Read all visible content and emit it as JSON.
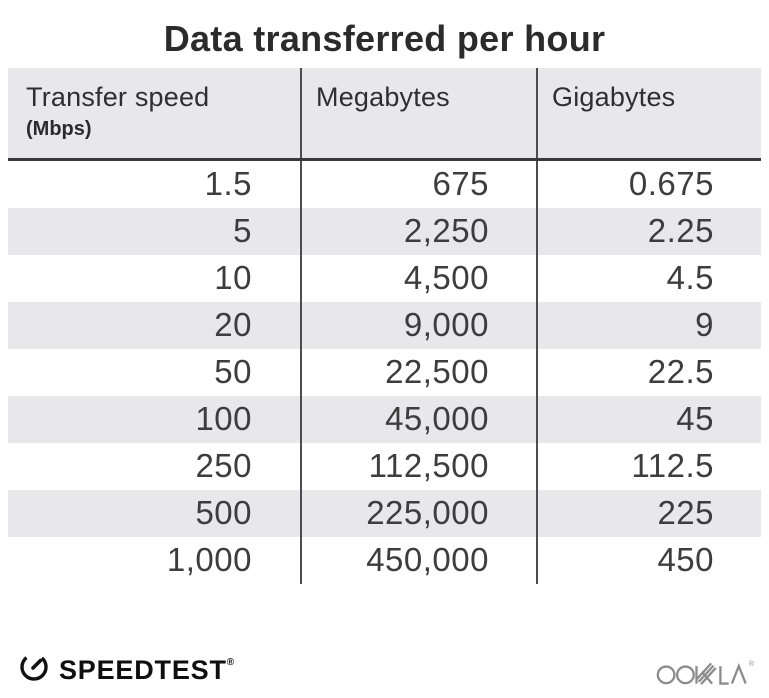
{
  "title": "Data transferred per hour",
  "chart_data": {
    "type": "table",
    "title": "Data transferred per hour",
    "columns": [
      "Transfer speed (Mbps)",
      "Megabytes",
      "Gigabytes"
    ],
    "rows": [
      [
        1.5,
        675,
        0.675
      ],
      [
        5,
        2250,
        2.25
      ],
      [
        10,
        4500,
        4.5
      ],
      [
        20,
        9000,
        9
      ],
      [
        50,
        22500,
        22.5
      ],
      [
        100,
        45000,
        45
      ],
      [
        250,
        112500,
        112.5
      ],
      [
        500,
        225000,
        225
      ],
      [
        1000,
        450000,
        450
      ]
    ]
  },
  "table": {
    "columns": [
      {
        "label": "Transfer speed",
        "sublabel": "(Mbps)"
      },
      {
        "label": "Megabytes",
        "sublabel": ""
      },
      {
        "label": "Gigabytes",
        "sublabel": ""
      }
    ],
    "display_rows": [
      [
        "1.5",
        "675",
        "0.675"
      ],
      [
        "5",
        "2,250",
        "2.25"
      ],
      [
        "10",
        "4,500",
        "4.5"
      ],
      [
        "20",
        "9,000",
        "9"
      ],
      [
        "50",
        "22,500",
        "22.5"
      ],
      [
        "100",
        "45,000",
        "45"
      ],
      [
        "250",
        "112,500",
        "112.5"
      ],
      [
        "500",
        "225,000",
        "225"
      ],
      [
        "1,000",
        "450,000",
        "450"
      ]
    ]
  },
  "footer": {
    "speedtest_label": "SPEEDTEST",
    "speedtest_reg_mark": "®",
    "ookla_label": "OOKLA",
    "ookla_reg_mark": "®"
  },
  "colors": {
    "background": "#ffffff",
    "title_text": "#2b2b2b",
    "header_bg": "#e8e8ea",
    "stripe_bg": "#e8e8ea",
    "column_divider": "#4d4d4d",
    "header_rule": "#3a3a3a",
    "data_text": "#3d3d3d",
    "logo_black": "#111111",
    "ookla_gray": "#8c8c8c"
  }
}
